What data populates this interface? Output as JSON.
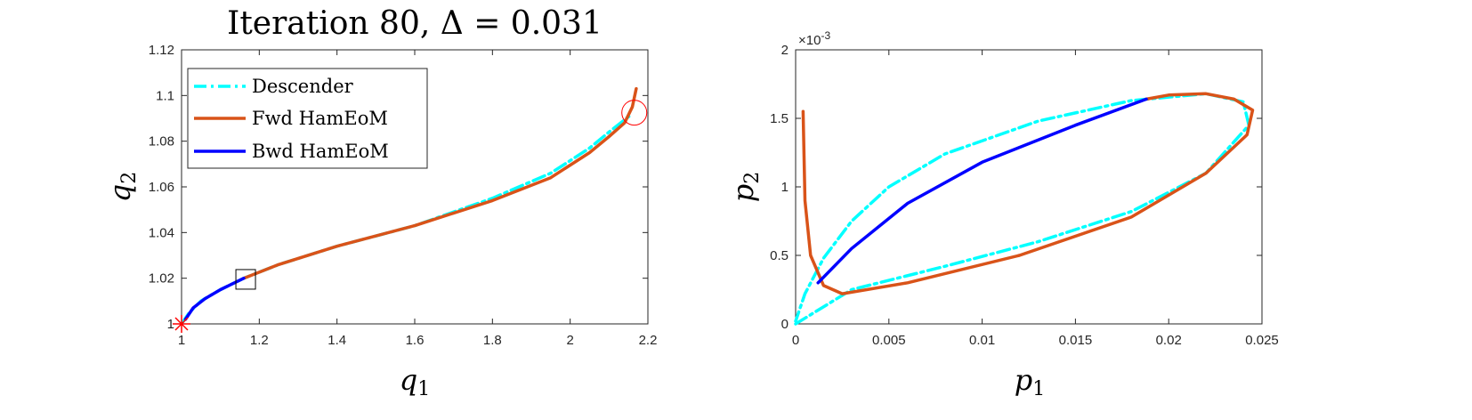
{
  "chart_data": [
    {
      "type": "line",
      "title": "Iteration 80, Δ = 0.031",
      "xlabel": "q",
      "xlabel_sub": "1",
      "ylabel": "q",
      "ylabel_sub": "2",
      "xlim": [
        1,
        2.2
      ],
      "ylim": [
        1,
        1.12
      ],
      "xticks": [
        1,
        1.2,
        1.4,
        1.6,
        1.8,
        2,
        2.2
      ],
      "xtick_labels": [
        "1",
        "1.2",
        "1.4",
        "1.6",
        "1.8",
        "2",
        "2.2"
      ],
      "yticks": [
        1,
        1.02,
        1.04,
        1.06,
        1.08,
        1.1,
        1.12
      ],
      "ytick_labels": [
        "1",
        "1.02",
        "1.04",
        "1.06",
        "1.08",
        "1.1",
        "1.12"
      ],
      "legend_position": "top-left",
      "series": [
        {
          "name": "Descender",
          "color": "#00FFFF",
          "style": "dash-dot",
          "x": [
            1.0,
            1.02,
            1.05,
            1.1,
            1.16,
            1.25,
            1.4,
            1.6,
            1.8,
            1.95,
            2.05,
            2.1,
            2.16
          ],
          "y": [
            1.0,
            1.005,
            1.01,
            1.015,
            1.02,
            1.026,
            1.034,
            1.043,
            1.055,
            1.066,
            1.077,
            1.084,
            1.092
          ]
        },
        {
          "name": "Fwd HamEoM",
          "color": "#D95319",
          "style": "solid",
          "x": [
            1.16,
            1.25,
            1.4,
            1.6,
            1.8,
            1.95,
            2.05,
            2.1,
            2.14,
            2.16,
            2.17
          ],
          "y": [
            1.02,
            1.026,
            1.034,
            1.043,
            1.054,
            1.064,
            1.075,
            1.082,
            1.088,
            1.095,
            1.103
          ]
        },
        {
          "name": "Bwd HamEoM",
          "color": "#0000FF",
          "style": "solid",
          "x": [
            1.01,
            1.03,
            1.06,
            1.1,
            1.16
          ],
          "y": [
            1.002,
            1.007,
            1.011,
            1.015,
            1.02
          ]
        }
      ],
      "markers": [
        {
          "type": "star",
          "color": "#FF0000",
          "x": 1.0,
          "y": 1.0
        },
        {
          "type": "square",
          "color": "#000000",
          "x": 1.165,
          "y": 1.0195
        },
        {
          "type": "circle",
          "color": "#FF0000",
          "x": 2.165,
          "y": 1.0925
        }
      ]
    },
    {
      "type": "line",
      "title": "",
      "xlabel": "p",
      "xlabel_sub": "1",
      "ylabel": "p",
      "ylabel_sub": "2",
      "exponent_label": "×10",
      "exponent_power": "-3",
      "xlim": [
        0,
        0.025
      ],
      "ylim": [
        0,
        2
      ],
      "y_unit_scale": "1e-3",
      "xticks": [
        0,
        0.005,
        0.01,
        0.015,
        0.02,
        0.025
      ],
      "xtick_labels": [
        "0",
        "0.005",
        "0.01",
        "0.015",
        "0.02",
        "0.025"
      ],
      "yticks": [
        0,
        0.5,
        1,
        1.5,
        2
      ],
      "ytick_labels": [
        "0",
        "0.5",
        "1",
        "1.5",
        "2"
      ],
      "series": [
        {
          "name": "Descender",
          "color": "#00FFFF",
          "style": "dash-dot",
          "x": [
            0.0,
            0.003,
            0.008,
            0.013,
            0.018,
            0.022,
            0.0243,
            0.024,
            0.022,
            0.018,
            0.013,
            0.008,
            0.005,
            0.003,
            0.0015,
            0.0005,
            0.0
          ],
          "y": [
            0.0,
            0.25,
            0.42,
            0.6,
            0.82,
            1.1,
            1.45,
            1.62,
            1.68,
            1.63,
            1.48,
            1.24,
            1.0,
            0.75,
            0.48,
            0.22,
            0.02
          ]
        },
        {
          "name": "Fwd HamEoM",
          "color": "#D95319",
          "style": "solid",
          "x": [
            0.0004,
            0.0005,
            0.0008,
            0.0015,
            0.0025,
            0.006,
            0.012,
            0.018,
            0.022,
            0.0242,
            0.0245,
            0.0235,
            0.022,
            0.02,
            0.0188
          ],
          "y": [
            1.55,
            0.9,
            0.5,
            0.28,
            0.22,
            0.3,
            0.5,
            0.78,
            1.1,
            1.38,
            1.56,
            1.64,
            1.68,
            1.67,
            1.64
          ]
        },
        {
          "name": "Bwd HamEoM",
          "color": "#0000FF",
          "style": "solid",
          "x": [
            0.0012,
            0.003,
            0.006,
            0.01,
            0.015,
            0.0188
          ],
          "y": [
            0.3,
            0.55,
            0.88,
            1.18,
            1.45,
            1.64
          ]
        }
      ]
    }
  ]
}
